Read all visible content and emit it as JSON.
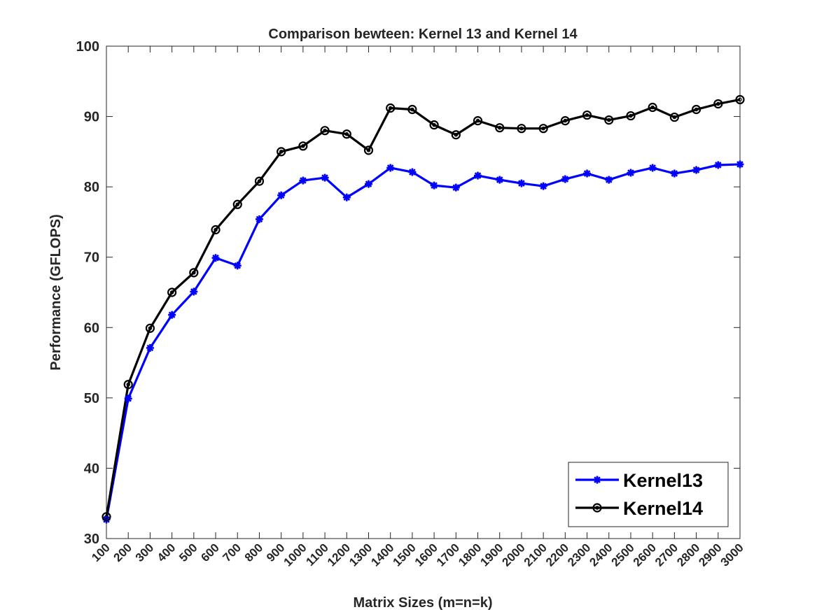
{
  "chart_data": {
    "type": "line",
    "title": "Comparison bewteen: Kernel 13 and Kernel 14",
    "xlabel": "Matrix Sizes (m=n=k)",
    "ylabel": "Performance (GFLOPS)",
    "x": [
      100,
      200,
      300,
      400,
      500,
      600,
      700,
      800,
      900,
      1000,
      1100,
      1200,
      1300,
      1400,
      1500,
      1600,
      1700,
      1800,
      1900,
      2000,
      2100,
      2200,
      2300,
      2400,
      2500,
      2600,
      2700,
      2800,
      2900,
      3000
    ],
    "xlim": [
      100,
      3000
    ],
    "ylim": [
      30,
      100
    ],
    "yticks": [
      30,
      40,
      50,
      60,
      70,
      80,
      90,
      100
    ],
    "grid": false,
    "legend_position": "bottom-right",
    "series": [
      {
        "name": "Kernel13",
        "color": "#0000ff",
        "marker": "asterisk",
        "values": [
          32.7,
          49.9,
          57.1,
          61.8,
          65.1,
          69.9,
          68.8,
          75.4,
          78.8,
          80.9,
          81.3,
          78.5,
          80.4,
          82.7,
          82.1,
          80.2,
          79.9,
          81.6,
          81.0,
          80.5,
          80.1,
          81.1,
          81.9,
          81.0,
          82.0,
          82.7,
          81.9,
          82.4,
          83.1,
          83.2
        ]
      },
      {
        "name": "Kernel14",
        "color": "#000000",
        "marker": "circle",
        "values": [
          33.1,
          51.9,
          59.9,
          65.0,
          67.8,
          73.9,
          77.5,
          80.8,
          85.0,
          85.8,
          88.0,
          87.5,
          85.2,
          91.2,
          91.0,
          88.8,
          87.4,
          89.4,
          88.4,
          88.3,
          88.3,
          89.4,
          90.2,
          89.5,
          90.1,
          91.3,
          89.9,
          91.0,
          91.8,
          92.4
        ]
      }
    ]
  }
}
